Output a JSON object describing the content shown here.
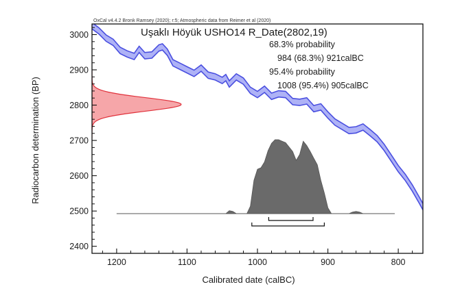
{
  "credit": "OxCal v4.4.2 Bronk Ramsey (2020); r:5; Atmospheric data from Reimer et al (2020)",
  "title": "Uşaklı Höyük USHO14 R_Date(2802,19)",
  "annotations": [
    "68.3% probability",
    "984 (68.3%) 921calBC",
    "95.4% probability",
    "1008 (95.4%) 905calBC"
  ],
  "colors": {
    "calibration_band": "#4a4fe0",
    "calibration_fill": "#aeb2f6",
    "radiocarbon_curve": "#e0303a",
    "radiocarbon_fill": "#f6a6a9",
    "posterior_fill": "#6a6a6a"
  },
  "chart_data": {
    "type": "area",
    "xlabel": "Calibrated date (calBC)",
    "ylabel": "Radiocarbon determination (BP)",
    "xlim": [
      1235,
      765
    ],
    "ylim": [
      2380,
      3030
    ],
    "x_reversed": true,
    "xticks": [
      1200,
      1100,
      1000,
      900,
      800
    ],
    "yticks": [
      2400,
      2500,
      2600,
      2700,
      2800,
      2900,
      3000
    ],
    "grid": false,
    "calibration_curve": {
      "x": [
        1235,
        1225,
        1215,
        1205,
        1195,
        1185,
        1175,
        1168,
        1160,
        1150,
        1140,
        1135,
        1128,
        1120,
        1110,
        1100,
        1090,
        1080,
        1070,
        1060,
        1050,
        1045,
        1040,
        1030,
        1020,
        1010,
        1000,
        990,
        980,
        970,
        960,
        950,
        940,
        930,
        920,
        910,
        900,
        890,
        880,
        870,
        860,
        850,
        840,
        830,
        820,
        810,
        800,
        790,
        780,
        770,
        765
      ],
      "y": [
        3025,
        3010,
        2990,
        2978,
        2955,
        2945,
        2938,
        2958,
        2940,
        2942,
        2962,
        2965,
        2950,
        2920,
        2910,
        2900,
        2890,
        2905,
        2885,
        2880,
        2870,
        2878,
        2860,
        2880,
        2868,
        2842,
        2830,
        2845,
        2825,
        2832,
        2830,
        2810,
        2808,
        2812,
        2790,
        2795,
        2772,
        2752,
        2740,
        2728,
        2730,
        2738,
        2722,
        2705,
        2680,
        2650,
        2620,
        2595,
        2565,
        2530,
        2512
      ],
      "halfwidth": 9
    },
    "radiocarbon_date": {
      "mean": 2802,
      "error": 19
    },
    "posterior": {
      "x": [
        1200,
        1045,
        1040,
        1035,
        1030,
        1025,
        1015,
        1010,
        1005,
        1000,
        995,
        990,
        985,
        980,
        975,
        970,
        965,
        960,
        955,
        950,
        945,
        940,
        935,
        930,
        925,
        920,
        915,
        910,
        905,
        900,
        895,
        890,
        880,
        870,
        865,
        860,
        855,
        850,
        840,
        830,
        820,
        810,
        805
      ],
      "density": [
        0,
        0,
        0.04,
        0.03,
        0,
        0,
        0,
        0.1,
        0.45,
        0.6,
        0.62,
        0.7,
        0.85,
        0.95,
        1.0,
        1.0,
        0.98,
        0.96,
        0.9,
        0.84,
        0.72,
        0.8,
        0.98,
        0.92,
        0.84,
        0.75,
        0.66,
        0.45,
        0.28,
        0.08,
        0,
        0,
        0,
        0,
        0.02,
        0.03,
        0.02,
        0,
        0,
        0,
        0,
        0,
        0
      ]
    },
    "ranges": [
      {
        "label": "68.3%",
        "from": 984,
        "to": 921
      },
      {
        "label": "95.4%",
        "from": 1008,
        "to": 905
      }
    ]
  }
}
